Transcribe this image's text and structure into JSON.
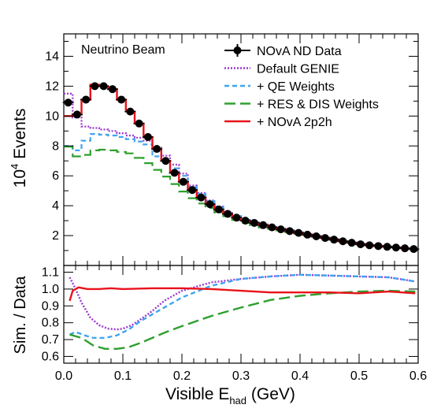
{
  "chart_data": [
    {
      "type": "line",
      "panel": "top",
      "annotation": "Neutrino Beam",
      "xlabel_prefix": "Visible E",
      "xlabel_sub": "had",
      "xlabel_suffix": " (GeV)",
      "ylabel_base": "10",
      "ylabel_exp": "4",
      "ylabel_rest": " Events",
      "xlim": [
        0,
        0.6
      ],
      "ylim": [
        0,
        15.5
      ],
      "yticks": [
        "2",
        "4",
        "6",
        "8",
        "10",
        "12",
        "14"
      ],
      "xticks": [
        "0.0",
        "0.1",
        "0.2",
        "0.3",
        "0.4",
        "0.5",
        "0.6"
      ],
      "legend_position": "top-right",
      "bin_edges": [
        0,
        0.015,
        0.03,
        0.045,
        0.06,
        0.075,
        0.09,
        0.105,
        0.12,
        0.135,
        0.15,
        0.165,
        0.18,
        0.195,
        0.21,
        0.225,
        0.24,
        0.255,
        0.27,
        0.285,
        0.3,
        0.315,
        0.33,
        0.345,
        0.36,
        0.375,
        0.39,
        0.405,
        0.42,
        0.435,
        0.45,
        0.465,
        0.48,
        0.495,
        0.51,
        0.525,
        0.54,
        0.555,
        0.57,
        0.585,
        0.6
      ],
      "series": [
        {
          "name": "NOvA ND Data",
          "style": "points",
          "color": "#000000",
          "values": [
            10.9,
            10.1,
            11.1,
            12.0,
            12.0,
            11.8,
            11.1,
            10.3,
            9.5,
            8.6,
            7.8,
            7.0,
            6.2,
            5.6,
            5.05,
            4.55,
            4.1,
            3.75,
            3.45,
            3.2,
            3.0,
            2.85,
            2.7,
            2.55,
            2.42,
            2.3,
            2.18,
            2.06,
            1.95,
            1.84,
            1.73,
            1.62,
            1.52,
            1.42,
            1.35,
            1.3,
            1.25,
            1.2,
            1.15,
            1.1
          ]
        },
        {
          "name": "Default GENIE",
          "style": "dotted",
          "color": "#9a38cf",
          "values": [
            11.5,
            9.9,
            9.3,
            9.2,
            9.1,
            9.0,
            8.85,
            8.7,
            8.55,
            8.35,
            7.9,
            7.35,
            6.75,
            6.15,
            5.35,
            4.85,
            4.35,
            3.95,
            3.6,
            3.3,
            3.05,
            2.9,
            2.75,
            2.6,
            2.47,
            2.35,
            2.22,
            2.1,
            1.98,
            1.87,
            1.76,
            1.65,
            1.55,
            1.45,
            1.37,
            1.32,
            1.27,
            1.22,
            1.17,
            1.12
          ]
        },
        {
          "name": "+ QE Weights",
          "style": "dashed",
          "color": "#3fa4f0",
          "values": [
            8.0,
            7.7,
            8.35,
            8.8,
            8.75,
            8.7,
            8.6,
            8.45,
            8.3,
            8.1,
            7.3,
            7.0,
            6.5,
            6.0,
            5.25,
            4.8,
            4.3,
            3.95,
            3.6,
            3.3,
            3.05,
            2.9,
            2.75,
            2.6,
            2.47,
            2.35,
            2.22,
            2.1,
            1.98,
            1.87,
            1.76,
            1.65,
            1.55,
            1.45,
            1.37,
            1.32,
            1.27,
            1.22,
            1.17,
            1.12
          ]
        },
        {
          "name": "+ RES & DIS Weights",
          "style": "longdash",
          "color": "#2ea02e",
          "values": [
            7.95,
            7.3,
            7.4,
            7.7,
            7.75,
            7.7,
            7.6,
            7.5,
            7.2,
            6.85,
            6.4,
            5.95,
            5.45,
            4.95,
            4.5,
            4.15,
            3.85,
            3.55,
            3.3,
            3.05,
            2.85,
            2.7,
            2.55,
            2.45,
            2.33,
            2.22,
            2.12,
            2.02,
            1.92,
            1.82,
            1.72,
            1.62,
            1.52,
            1.42,
            1.35,
            1.3,
            1.25,
            1.2,
            1.15,
            1.1
          ]
        },
        {
          "name": "+ NOvA 2p2h",
          "style": "solid",
          "color": "#e8121b",
          "values": [
            10.0,
            10.1,
            11.1,
            12.1,
            12.0,
            11.8,
            11.1,
            10.3,
            9.5,
            8.6,
            7.8,
            7.0,
            6.2,
            5.6,
            5.05,
            4.55,
            4.1,
            3.75,
            3.45,
            3.2,
            3.0,
            2.85,
            2.7,
            2.55,
            2.42,
            2.3,
            2.18,
            2.06,
            1.95,
            1.84,
            1.73,
            1.62,
            1.52,
            1.42,
            1.35,
            1.3,
            1.25,
            1.2,
            1.15,
            1.1
          ]
        }
      ]
    },
    {
      "type": "line",
      "panel": "bottom",
      "ylabel": "Sim. / Data",
      "xlim": [
        0,
        0.6
      ],
      "ylim": [
        0.56,
        1.14
      ],
      "yticks": [
        "0.6",
        "0.7",
        "0.8",
        "0.9",
        "1.0",
        "1.1"
      ],
      "series": [
        {
          "name": "Default GENIE",
          "color": "#9a38cf",
          "x": [
            0.01,
            0.02,
            0.03,
            0.045,
            0.06,
            0.075,
            0.09,
            0.1,
            0.115,
            0.13,
            0.15,
            0.17,
            0.2,
            0.25,
            0.3,
            0.35,
            0.4,
            0.45,
            0.5,
            0.55,
            0.595
          ],
          "y": [
            1.07,
            1.0,
            0.92,
            0.83,
            0.785,
            0.765,
            0.76,
            0.765,
            0.785,
            0.82,
            0.87,
            0.93,
            0.99,
            1.04,
            1.06,
            1.075,
            1.085,
            1.08,
            1.075,
            1.07,
            1.045
          ]
        },
        {
          "name": "+ QE Weights",
          "color": "#3fa4f0",
          "x": [
            0.01,
            0.02,
            0.035,
            0.05,
            0.07,
            0.09,
            0.11,
            0.13,
            0.16,
            0.2,
            0.25,
            0.3,
            0.35,
            0.4,
            0.45,
            0.5,
            0.55,
            0.595
          ],
          "y": [
            0.73,
            0.745,
            0.725,
            0.71,
            0.71,
            0.725,
            0.76,
            0.81,
            0.87,
            0.95,
            1.02,
            1.06,
            1.075,
            1.085,
            1.08,
            1.075,
            1.07,
            1.045
          ]
        },
        {
          "name": "+ RES & DIS Weights",
          "color": "#2ea02e",
          "x": [
            0.01,
            0.03,
            0.05,
            0.07,
            0.09,
            0.11,
            0.13,
            0.15,
            0.17,
            0.2,
            0.25,
            0.3,
            0.35,
            0.4,
            0.45,
            0.5,
            0.55,
            0.595
          ],
          "y": [
            0.73,
            0.71,
            0.665,
            0.645,
            0.645,
            0.655,
            0.68,
            0.71,
            0.74,
            0.78,
            0.84,
            0.89,
            0.935,
            0.96,
            0.975,
            0.985,
            0.99,
            0.985
          ]
        },
        {
          "name": "+ NOvA 2p2h",
          "color": "#e8121b",
          "x": [
            0.01,
            0.015,
            0.025,
            0.04,
            0.06,
            0.08,
            0.1,
            0.15,
            0.2,
            0.25,
            0.3,
            0.35,
            0.4,
            0.45,
            0.5,
            0.55,
            0.595
          ],
          "y": [
            0.93,
            0.99,
            1.01,
            1.0,
            1.0,
            1.005,
            1.0,
            1.005,
            1.005,
            1.0,
            0.99,
            0.98,
            0.98,
            0.98,
            0.975,
            0.985,
            0.975
          ]
        }
      ]
    }
  ]
}
